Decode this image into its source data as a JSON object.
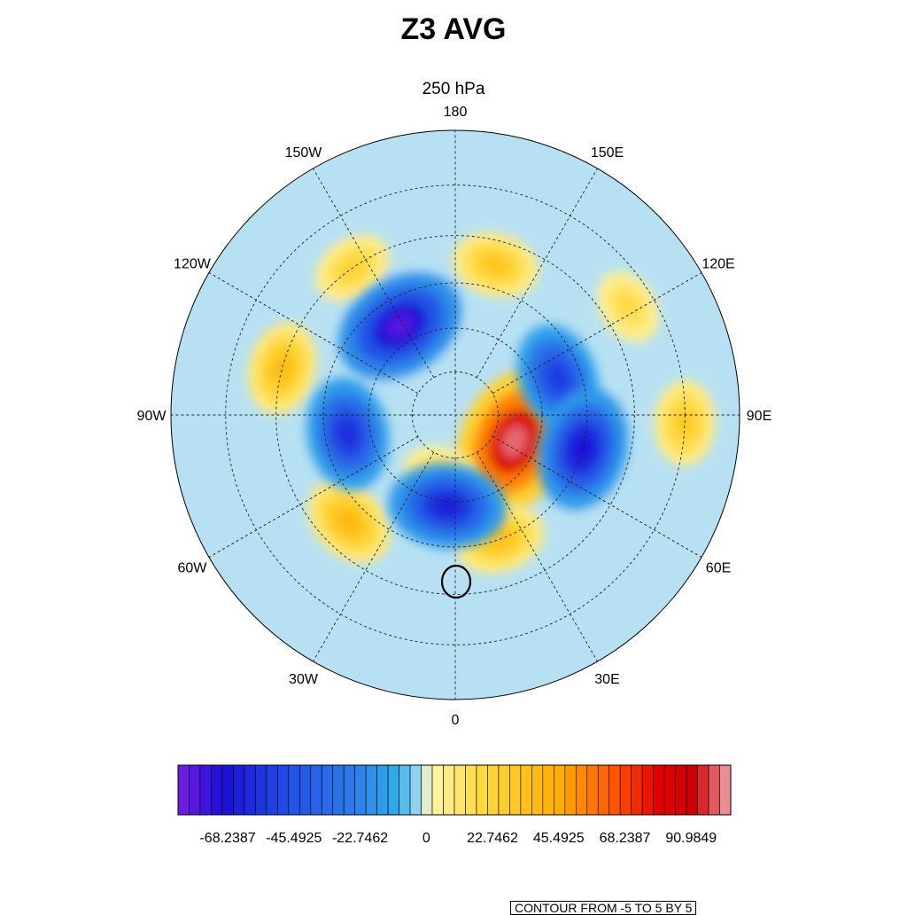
{
  "title": "Z3 AVG",
  "subtitle": "250 hPa",
  "contour_note": "CONTOUR FROM -5 TO 5 BY 5",
  "colors": {
    "background_field": "#b7e1f3",
    "deep_negative": "#1a0fd6",
    "negative": "#2d7be8",
    "light_negative": "#7cc4ee",
    "light_positive": "#fff5a8",
    "positive": "#ffb000",
    "strong_positive": "#e50000",
    "extreme_positive": "#f2a5ae"
  },
  "chart_data": {
    "type": "heatmap",
    "projection": "polar stereographic (north pole)",
    "title": "Z3 AVG",
    "subtitle": "250 hPa",
    "longitude_labels": [
      "180",
      "150E",
      "120E",
      "90E",
      "60E",
      "30E",
      "0",
      "30W",
      "60W",
      "90W",
      "120W",
      "150W"
    ],
    "longitude_values": [
      180,
      150,
      120,
      90,
      60,
      30,
      0,
      -30,
      -60,
      -90,
      -120,
      -150
    ],
    "latitude_circles": [
      80,
      70,
      60,
      50,
      40
    ],
    "min_latitude": 30,
    "grid": true,
    "colorbar": {
      "orientation": "horizontal",
      "labels": [
        "-68.2387",
        "-45.4925",
        "-22.7462",
        "0",
        "22.7462",
        "45.4925",
        "68.2387",
        "90.9849"
      ],
      "label_values": [
        -68.2387,
        -45.4925,
        -22.7462,
        0,
        22.7462,
        45.4925,
        68.2387,
        90.9849
      ],
      "range": [
        -85.3,
        104.6
      ],
      "n_colors": 50
    },
    "features": [
      {
        "name": "positive anomaly (max)",
        "lon": 66,
        "lat": 75,
        "value": 100
      },
      {
        "name": "positive anomaly",
        "lon": 20,
        "lat": 60,
        "value": 35
      },
      {
        "name": "positive anomaly",
        "lon": -15,
        "lat": 76,
        "value": 18
      },
      {
        "name": "positive anomaly",
        "lon": -45,
        "lat": 56,
        "value": 40
      },
      {
        "name": "positive anomaly",
        "lon": -105,
        "lat": 50,
        "value": 38
      },
      {
        "name": "positive anomaly",
        "lon": -145,
        "lat": 50,
        "value": 25
      },
      {
        "name": "positive anomaly",
        "lon": 165,
        "lat": 55,
        "value": 32
      },
      {
        "name": "positive anomaly",
        "lon": 122,
        "lat": 45,
        "value": 20
      },
      {
        "name": "positive anomaly",
        "lon": 88,
        "lat": 40,
        "value": 30
      },
      {
        "name": "negative anomaly (min)",
        "lon": -148,
        "lat": 66,
        "value": -80
      },
      {
        "name": "negative anomaly",
        "lon": 110,
        "lat": 65,
        "value": -55
      },
      {
        "name": "negative anomaly",
        "lon": 75,
        "lat": 60,
        "value": -70
      },
      {
        "name": "negative anomaly",
        "lon": -5,
        "lat": 69,
        "value": -65
      },
      {
        "name": "negative anomaly",
        "lon": -80,
        "lat": 65,
        "value": -60
      }
    ]
  }
}
